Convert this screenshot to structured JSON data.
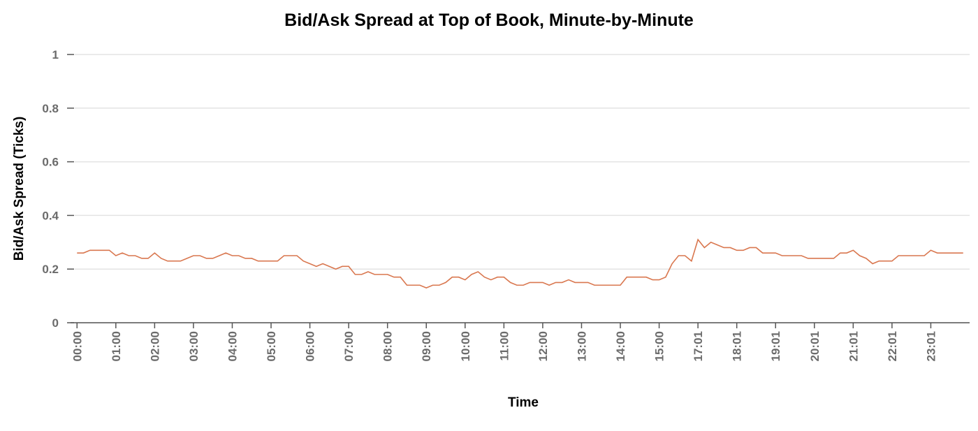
{
  "chart_data": {
    "type": "line",
    "title": "Bid/Ask Spread at Top of Book, Minute-by-Minute",
    "x_label": "Time",
    "y_label": "Bid/Ask Spread (Ticks)",
    "x": [
      0,
      10,
      20,
      30,
      40,
      50,
      60,
      70,
      80,
      90,
      100,
      110,
      120,
      130,
      140,
      150,
      160,
      170,
      180,
      190,
      200,
      210,
      220,
      230,
      240,
      250,
      260,
      270,
      280,
      290,
      300,
      310,
      320,
      330,
      340,
      350,
      360,
      370,
      380,
      390,
      400,
      410,
      420,
      430,
      440,
      450,
      460,
      470,
      480,
      490,
      500,
      510,
      520,
      530,
      540,
      550,
      560,
      570,
      580,
      590,
      600,
      610,
      620,
      630,
      640,
      650,
      660,
      670,
      680,
      690,
      700,
      710,
      720,
      730,
      740,
      750,
      760,
      770,
      780,
      790,
      800,
      810,
      820,
      830,
      840,
      850,
      860,
      870,
      880,
      890,
      900,
      910,
      920,
      930,
      940,
      950,
      960,
      970,
      980,
      990,
      1000,
      1010,
      1020,
      1030,
      1040,
      1050,
      1060,
      1070,
      1080,
      1090,
      1100,
      1110,
      1120,
      1130,
      1140,
      1150,
      1160,
      1170,
      1180,
      1190,
      1200,
      1210,
      1220,
      1230,
      1240,
      1250,
      1260,
      1270,
      1280,
      1290,
      1300,
      1310,
      1320,
      1330,
      1340,
      1350,
      1360,
      1370
    ],
    "values": [
      0.26,
      0.26,
      0.27,
      0.27,
      0.27,
      0.27,
      0.25,
      0.26,
      0.25,
      0.25,
      0.24,
      0.24,
      0.26,
      0.24,
      0.23,
      0.23,
      0.23,
      0.24,
      0.25,
      0.25,
      0.24,
      0.24,
      0.25,
      0.26,
      0.25,
      0.25,
      0.24,
      0.24,
      0.23,
      0.23,
      0.23,
      0.23,
      0.25,
      0.25,
      0.25,
      0.23,
      0.22,
      0.21,
      0.22,
      0.21,
      0.2,
      0.21,
      0.21,
      0.18,
      0.18,
      0.19,
      0.18,
      0.18,
      0.18,
      0.17,
      0.17,
      0.14,
      0.14,
      0.14,
      0.13,
      0.14,
      0.14,
      0.15,
      0.17,
      0.17,
      0.16,
      0.18,
      0.19,
      0.17,
      0.16,
      0.17,
      0.17,
      0.15,
      0.14,
      0.14,
      0.15,
      0.15,
      0.15,
      0.14,
      0.15,
      0.15,
      0.16,
      0.15,
      0.15,
      0.15,
      0.14,
      0.14,
      0.14,
      0.14,
      0.14,
      0.17,
      0.17,
      0.17,
      0.17,
      0.16,
      0.16,
      0.17,
      0.22,
      0.25,
      0.25,
      0.23,
      0.31,
      0.28,
      0.3,
      0.29,
      0.28,
      0.28,
      0.27,
      0.27,
      0.28,
      0.28,
      0.26,
      0.26,
      0.26,
      0.25,
      0.25,
      0.25,
      0.25,
      0.24,
      0.24,
      0.24,
      0.24,
      0.24,
      0.26,
      0.26,
      0.27,
      0.25,
      0.24,
      0.22,
      0.23,
      0.23,
      0.23,
      0.25,
      0.25,
      0.25,
      0.25,
      0.25,
      0.27,
      0.26,
      0.26,
      0.26,
      0.26,
      0.26
    ],
    "color": "#d9774f",
    "xlim": [
      -10,
      1380
    ],
    "ylim": [
      0,
      1
    ],
    "yticks": [
      0,
      0.2,
      0.4,
      0.6,
      0.8,
      1
    ],
    "xticks": [
      {
        "value": 0,
        "label": "00:00"
      },
      {
        "value": 60,
        "label": "01:00"
      },
      {
        "value": 120,
        "label": "02:00"
      },
      {
        "value": 180,
        "label": "03:00"
      },
      {
        "value": 240,
        "label": "04:00"
      },
      {
        "value": 300,
        "label": "05:00"
      },
      {
        "value": 360,
        "label": "06:00"
      },
      {
        "value": 420,
        "label": "07:00"
      },
      {
        "value": 480,
        "label": "08:00"
      },
      {
        "value": 540,
        "label": "09:00"
      },
      {
        "value": 600,
        "label": "10:00"
      },
      {
        "value": 660,
        "label": "11:00"
      },
      {
        "value": 720,
        "label": "12:00"
      },
      {
        "value": 780,
        "label": "13:00"
      },
      {
        "value": 840,
        "label": "14:00"
      },
      {
        "value": 900,
        "label": "15:00"
      },
      {
        "value": 960,
        "label": "17:01"
      },
      {
        "value": 1020,
        "label": "18:01"
      },
      {
        "value": 1080,
        "label": "19:01"
      },
      {
        "value": 1140,
        "label": "20:01"
      },
      {
        "value": 1200,
        "label": "21:01"
      },
      {
        "value": 1260,
        "label": "22:01"
      },
      {
        "value": 1320,
        "label": "23:01"
      }
    ],
    "grid": true
  }
}
